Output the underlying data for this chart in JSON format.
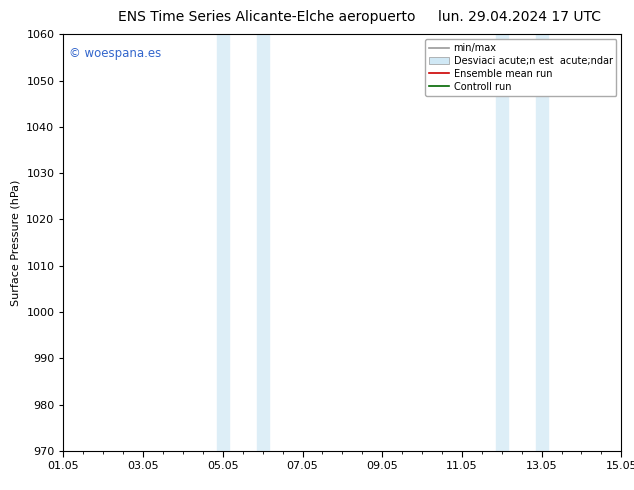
{
  "title_left": "ENS Time Series Alicante-Elche aeropuerto",
  "title_right": "lun. 29.04.2024 17 UTC",
  "ylabel": "Surface Pressure (hPa)",
  "xlim_min": 0.0,
  "xlim_max": 14.0,
  "ylim_min": 970,
  "ylim_max": 1060,
  "yticks": [
    970,
    980,
    990,
    1000,
    1010,
    1020,
    1030,
    1040,
    1050,
    1060
  ],
  "xtick_positions": [
    0,
    2,
    4,
    6,
    8,
    10,
    12,
    14
  ],
  "xtick_labels": [
    "01.05",
    "03.05",
    "05.05",
    "07.05",
    "09.05",
    "11.05",
    "13.05",
    "15.05"
  ],
  "shaded_regions": [
    {
      "x_start": 3.85,
      "x_end": 4.15,
      "color": "#ddeef7"
    },
    {
      "x_start": 4.85,
      "x_end": 5.15,
      "color": "#ddeef7"
    },
    {
      "x_start": 10.85,
      "x_end": 11.15,
      "color": "#ddeef7"
    },
    {
      "x_start": 11.85,
      "x_end": 12.15,
      "color": "#ddeef7"
    }
  ],
  "watermark_text": "© woespana.es",
  "watermark_color": "#3366cc",
  "legend_entries": [
    {
      "label": "min/max",
      "color": "#aaaaaa",
      "lw": 1.2
    },
    {
      "label": "Desviaci acute;n est acute;ndar",
      "color": "#d0e8f5",
      "lw": 8
    },
    {
      "label": "Ensemble mean run",
      "color": "#cc0000",
      "lw": 1.2
    },
    {
      "label": "Controll run",
      "color": "#006600",
      "lw": 1.2
    }
  ],
  "bg_color": "#ffffff",
  "plot_bg_color": "#ffffff",
  "title_fontsize": 10,
  "label_fontsize": 8,
  "tick_fontsize": 8,
  "legend_fontsize": 7
}
